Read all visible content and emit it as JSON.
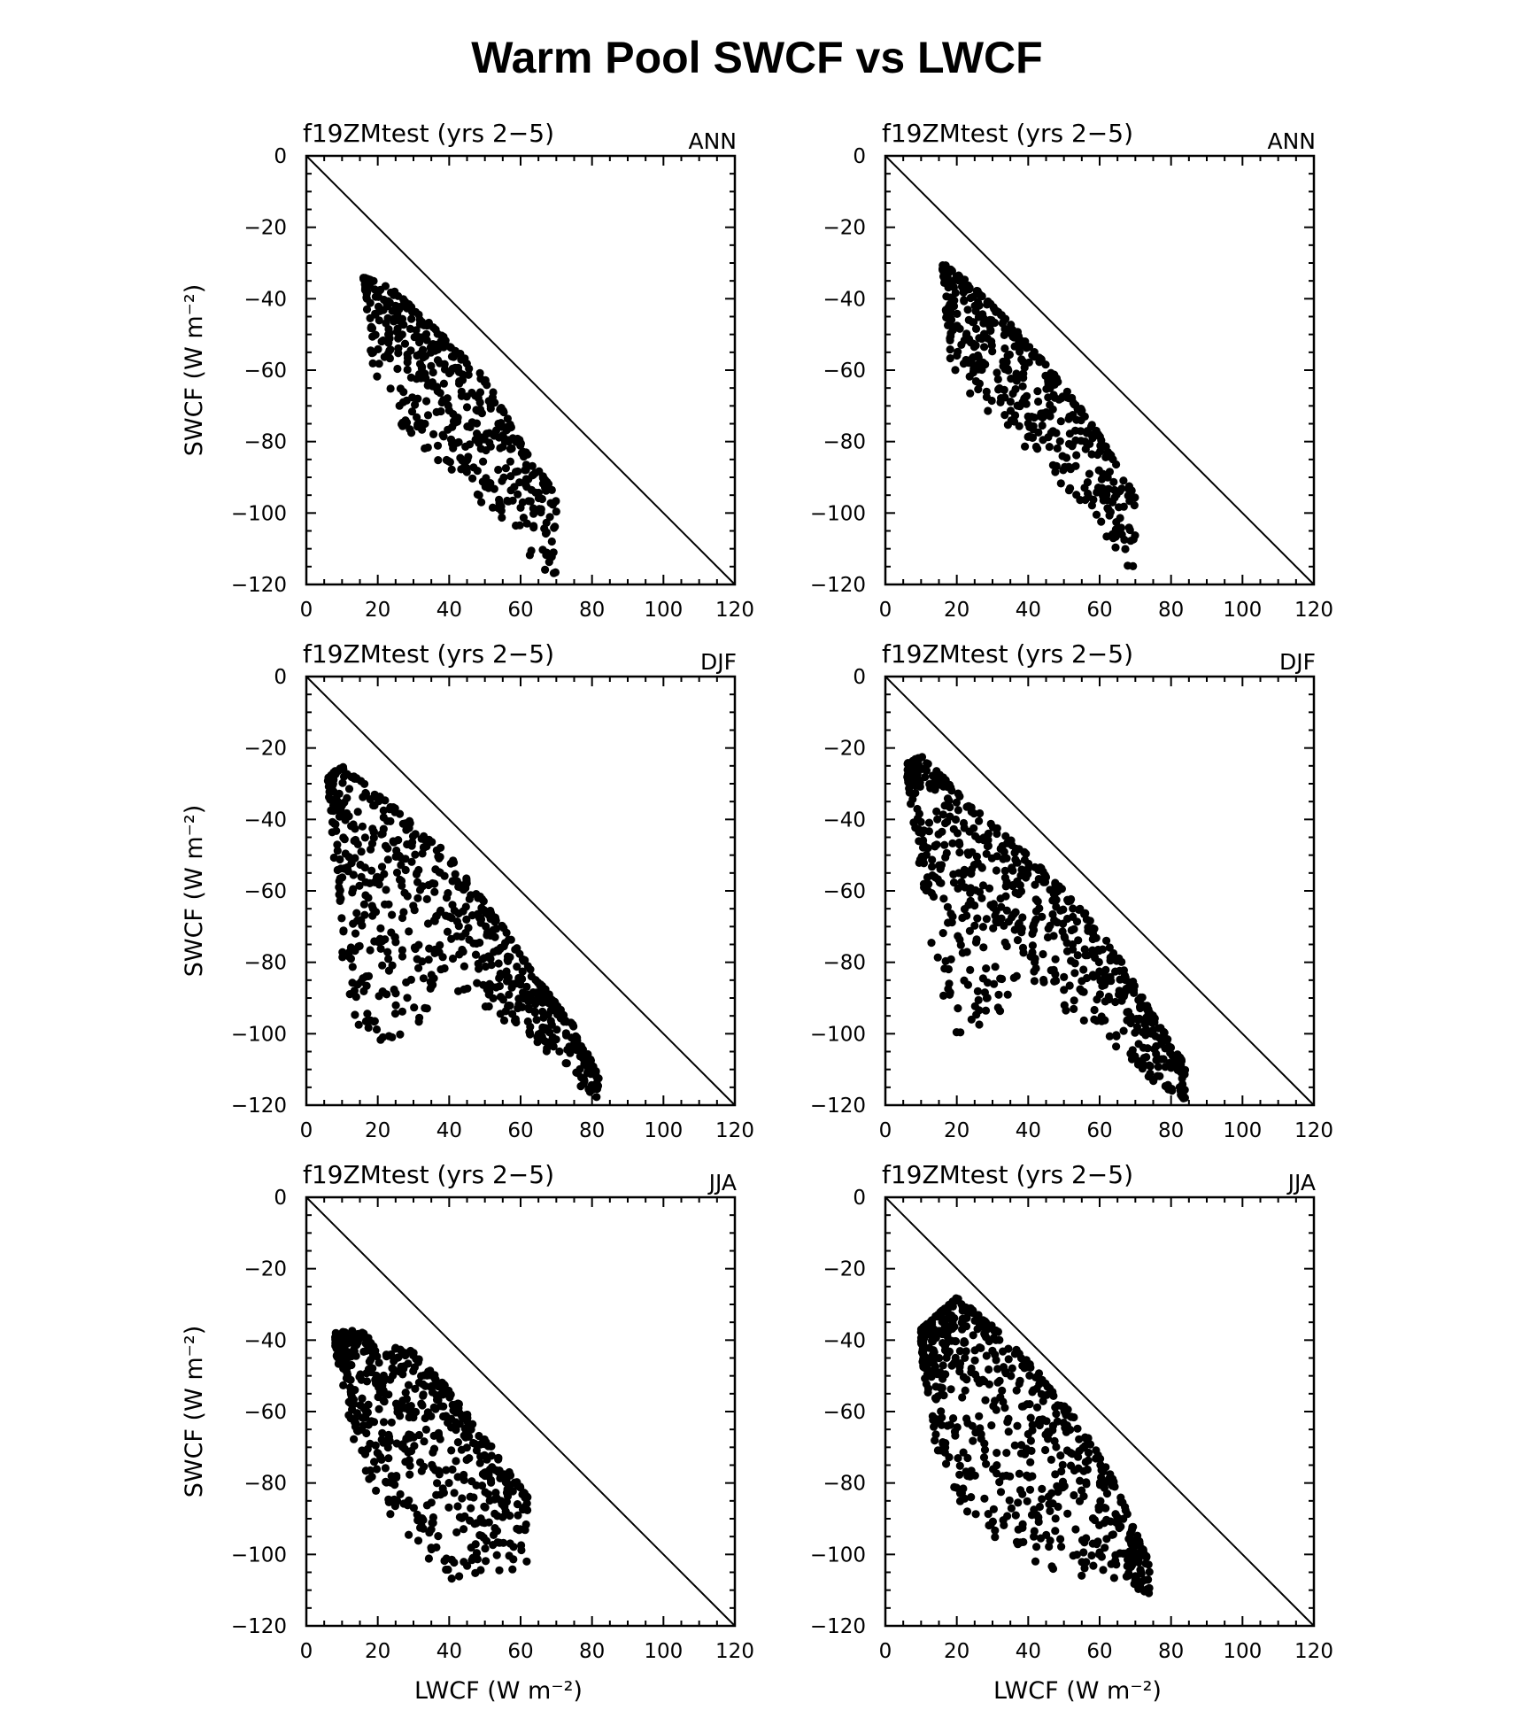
{
  "title": "Warm Pool SWCF vs LWCF",
  "chart_data": [
    {
      "type": "scatter",
      "panel_title": "f19ZMtest (yrs 2−5)",
      "season": "ANN",
      "xlabel": "",
      "ylabel": "SWCF (W m⁻²)",
      "xlim": [
        0,
        120
      ],
      "ylim": [
        -120,
        0
      ],
      "x_ticks": [
        "0",
        "20",
        "40",
        "60",
        "80",
        "100",
        "120"
      ],
      "y_ticks": [
        "0",
        "−20",
        "−40",
        "−60",
        "−80",
        "−100",
        "−120"
      ],
      "reference_line": "one-to-one (y = −x)",
      "point_color": "#000000",
      "cloud": {
        "min": [
          [
            16,
            -34
          ],
          [
            24,
            -37
          ],
          [
            38,
            -50
          ],
          [
            50,
            -62
          ],
          [
            60,
            -80
          ],
          [
            68,
            -92
          ],
          [
            74,
            -104
          ],
          [
            77,
            -118
          ]
        ],
        "max": [
          [
            16,
            -36
          ],
          [
            18,
            -55
          ],
          [
            20,
            -66
          ],
          [
            26,
            -75
          ],
          [
            34,
            -83
          ],
          [
            44,
            -93
          ],
          [
            55,
            -103
          ],
          [
            63,
            -113
          ],
          [
            70,
            -119
          ]
        ],
        "n": 450,
        "seed": 11
      }
    },
    {
      "type": "scatter",
      "panel_title": "f19ZMtest (yrs 2−5)",
      "season": "ANN",
      "xlabel": "",
      "ylabel": "",
      "xlim": [
        0,
        120
      ],
      "ylim": [
        -120,
        0
      ],
      "x_ticks": [
        "0",
        "20",
        "40",
        "60",
        "80",
        "100",
        "120"
      ],
      "y_ticks": [
        "0",
        "−20",
        "−40",
        "−60",
        "−80",
        "−100",
        "−120"
      ],
      "reference_line": "one-to-one (y = −x)",
      "point_color": "#000000",
      "cloud": {
        "min": [
          [
            16,
            -30
          ],
          [
            24,
            -36
          ],
          [
            36,
            -48
          ],
          [
            48,
            -62
          ],
          [
            58,
            -75
          ],
          [
            68,
            -92
          ],
          [
            76,
            -106
          ],
          [
            78,
            -116
          ]
        ],
        "max": [
          [
            16,
            -32
          ],
          [
            18,
            -58
          ],
          [
            24,
            -67
          ],
          [
            32,
            -75
          ],
          [
            44,
            -86
          ],
          [
            54,
            -98
          ],
          [
            63,
            -108
          ],
          [
            70,
            -118
          ]
        ],
        "n": 450,
        "seed": 23
      }
    },
    {
      "type": "scatter",
      "panel_title": "f19ZMtest (yrs 2−5)",
      "season": "DJF",
      "xlabel": "",
      "ylabel": "SWCF (W m⁻²)",
      "xlim": [
        0,
        120
      ],
      "ylim": [
        -120,
        0
      ],
      "x_ticks": [
        "0",
        "20",
        "40",
        "60",
        "80",
        "100",
        "120"
      ],
      "y_ticks": [
        "0",
        "−20",
        "−40",
        "−60",
        "−80",
        "−100",
        "−120"
      ],
      "reference_line": "one-to-one (y = −x)",
      "point_color": "#000000",
      "cloud": {
        "min": [
          [
            6,
            -28
          ],
          [
            10,
            -25
          ],
          [
            25,
            -37
          ],
          [
            40,
            -50
          ],
          [
            55,
            -70
          ],
          [
            65,
            -85
          ],
          [
            75,
            -98
          ],
          [
            85,
            -118
          ]
        ],
        "max": [
          [
            6,
            -32
          ],
          [
            10,
            -80
          ],
          [
            14,
            -97
          ],
          [
            20,
            -102
          ],
          [
            30,
            -102
          ],
          [
            38,
            -86
          ],
          [
            50,
            -94
          ],
          [
            62,
            -100
          ],
          [
            72,
            -110
          ],
          [
            82,
            -120
          ]
        ],
        "n": 650,
        "seed": 37
      }
    },
    {
      "type": "scatter",
      "panel_title": "f19ZMtest (yrs 2−5)",
      "season": "DJF",
      "xlabel": "",
      "ylabel": "",
      "xlim": [
        0,
        120
      ],
      "ylim": [
        -120,
        0
      ],
      "x_ticks": [
        "0",
        "20",
        "40",
        "60",
        "80",
        "100",
        "120"
      ],
      "y_ticks": [
        "0",
        "−20",
        "−40",
        "−60",
        "−80",
        "−100",
        "−120"
      ],
      "reference_line": "one-to-one (y = −x)",
      "point_color": "#000000",
      "cloud": {
        "min": [
          [
            6,
            -24
          ],
          [
            10,
            -22
          ],
          [
            25,
            -37
          ],
          [
            40,
            -50
          ],
          [
            55,
            -65
          ],
          [
            65,
            -78
          ],
          [
            75,
            -95
          ],
          [
            85,
            -110
          ]
        ],
        "max": [
          [
            6,
            -28
          ],
          [
            12,
            -70
          ],
          [
            16,
            -92
          ],
          [
            22,
            -104
          ],
          [
            30,
            -98
          ],
          [
            38,
            -82
          ],
          [
            48,
            -92
          ],
          [
            60,
            -100
          ],
          [
            72,
            -112
          ],
          [
            84,
            -119
          ]
        ],
        "n": 650,
        "seed": 41
      }
    },
    {
      "type": "scatter",
      "panel_title": "f19ZMtest (yrs 2−5)",
      "season": "JJA",
      "xlabel": "LWCF (W m⁻²)",
      "ylabel": "SWCF (W m⁻²)",
      "xlim": [
        0,
        120
      ],
      "ylim": [
        -120,
        0
      ],
      "x_ticks": [
        "0",
        "20",
        "40",
        "60",
        "80",
        "100",
        "120"
      ],
      "y_ticks": [
        "0",
        "−20",
        "−40",
        "−60",
        "−80",
        "−100",
        "−120"
      ],
      "reference_line": "one-to-one (y = −x)",
      "point_color": "#000000",
      "cloud": {
        "min": [
          [
            8,
            -38
          ],
          [
            15,
            -37
          ],
          [
            20,
            -42
          ],
          [
            26,
            -39
          ],
          [
            40,
            -54
          ],
          [
            52,
            -70
          ],
          [
            62,
            -84
          ],
          [
            64,
            -99
          ]
        ],
        "max": [
          [
            8,
            -42
          ],
          [
            14,
            -72
          ],
          [
            20,
            -85
          ],
          [
            30,
            -96
          ],
          [
            38,
            -108
          ],
          [
            46,
            -108
          ],
          [
            54,
            -106
          ],
          [
            62,
            -104
          ]
        ],
        "n": 600,
        "seed": 53
      }
    },
    {
      "type": "scatter",
      "panel_title": "f19ZMtest (yrs 2−5)",
      "season": "JJA",
      "xlabel": "LWCF (W m⁻²)",
      "ylabel": "",
      "xlim": [
        0,
        120
      ],
      "ylim": [
        -120,
        0
      ],
      "x_ticks": [
        "0",
        "20",
        "40",
        "60",
        "80",
        "100",
        "120"
      ],
      "y_ticks": [
        "0",
        "−20",
        "−40",
        "−60",
        "−80",
        "−100",
        "−120"
      ],
      "reference_line": "one-to-one (y = −x)",
      "point_color": "#000000",
      "cloud": {
        "min": [
          [
            10,
            -37
          ],
          [
            20,
            -28
          ],
          [
            30,
            -36
          ],
          [
            42,
            -48
          ],
          [
            54,
            -63
          ],
          [
            62,
            -75
          ],
          [
            72,
            -98
          ],
          [
            76,
            -107
          ]
        ],
        "max": [
          [
            10,
            -44
          ],
          [
            14,
            -70
          ],
          [
            20,
            -86
          ],
          [
            30,
            -96
          ],
          [
            40,
            -104
          ],
          [
            50,
            -106
          ],
          [
            62,
            -106
          ],
          [
            74,
            -112
          ]
        ],
        "n": 650,
        "seed": 67
      }
    }
  ]
}
